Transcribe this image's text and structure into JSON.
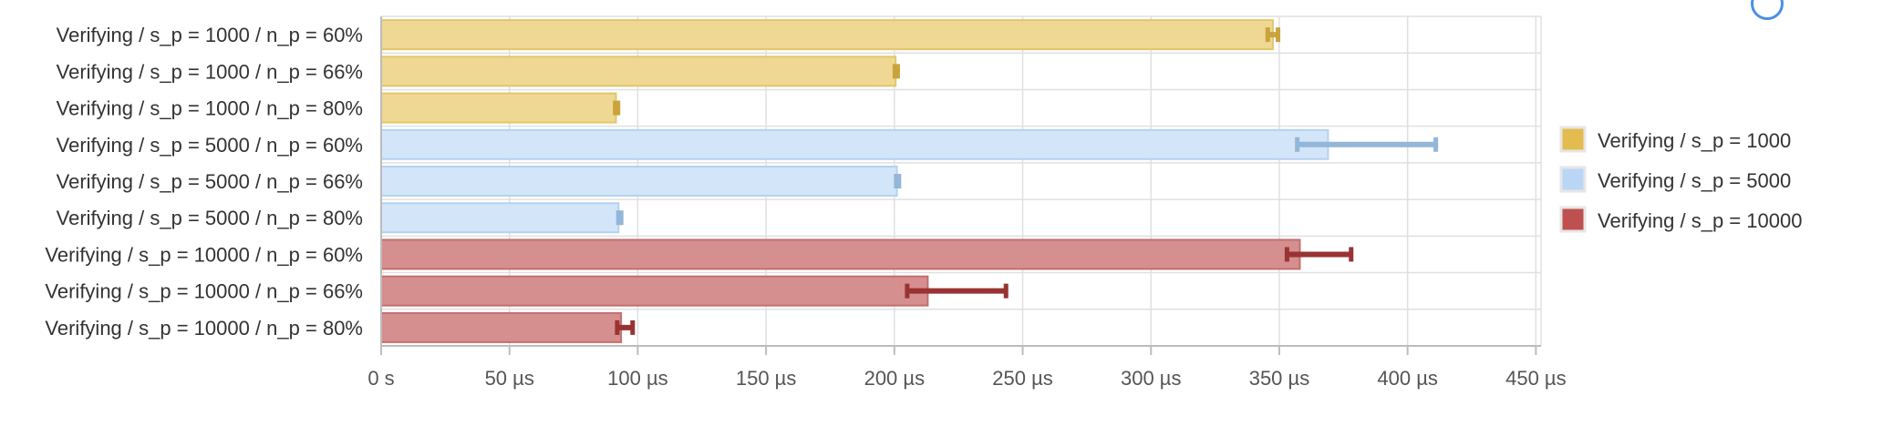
{
  "chart_data": {
    "type": "bar",
    "orientation": "horizontal",
    "categories": [
      "Verifying / s_p = 1000 / n_p = 60%",
      "Verifying / s_p = 1000 / n_p = 66%",
      "Verifying / s_p = 1000 / n_p = 80%",
      "Verifying / s_p = 5000 / n_p = 60%",
      "Verifying / s_p = 5000 / n_p = 66%",
      "Verifying / s_p = 5000 / n_p = 80%",
      "Verifying / s_p = 10000 / n_p = 60%",
      "Verifying / s_p = 10000 / n_p = 66%",
      "Verifying / s_p = 10000 / n_p = 80%"
    ],
    "values": [
      347.5,
      200.5,
      91.5,
      369,
      201,
      92.5,
      358,
      213,
      93.5
    ],
    "error_low": [
      345.5,
      199.5,
      91.5,
      357,
      200.5,
      92.5,
      353,
      205,
      92
    ],
    "error_high": [
      349.5,
      202,
      92,
      411,
      202,
      93.5,
      378,
      243.5,
      98
    ],
    "series_of_category": [
      0,
      0,
      0,
      1,
      1,
      1,
      2,
      2,
      2
    ],
    "series": [
      {
        "name": "Verifying / s_p = 1000",
        "fill": "#efd893",
        "stroke": "#e2c66c",
        "error": "#c9a33c",
        "legend": "#e2bc4e"
      },
      {
        "name": "Verifying / s_p = 5000",
        "fill": "#d3e5f8",
        "stroke": "#b5d2f0",
        "error": "#93b6d9",
        "legend": "#b9d7f5"
      },
      {
        "name": "Verifying / s_p = 10000",
        "fill": "#d58f8f",
        "stroke": "#c46e6e",
        "error": "#993333",
        "legend": "#bf5050"
      }
    ],
    "xticks": [
      0,
      50,
      100,
      150,
      200,
      250,
      300,
      350,
      400,
      450
    ],
    "xtick_labels": [
      "0 s",
      "50 µs",
      "100 µs",
      "150 µs",
      "200 µs",
      "250 µs",
      "300 µs",
      "350 µs",
      "400 µs",
      "450 µs"
    ],
    "xlim": [
      0,
      450
    ],
    "grid": true,
    "legend_position": "right",
    "title": "",
    "xlabel": "",
    "ylabel": ""
  }
}
